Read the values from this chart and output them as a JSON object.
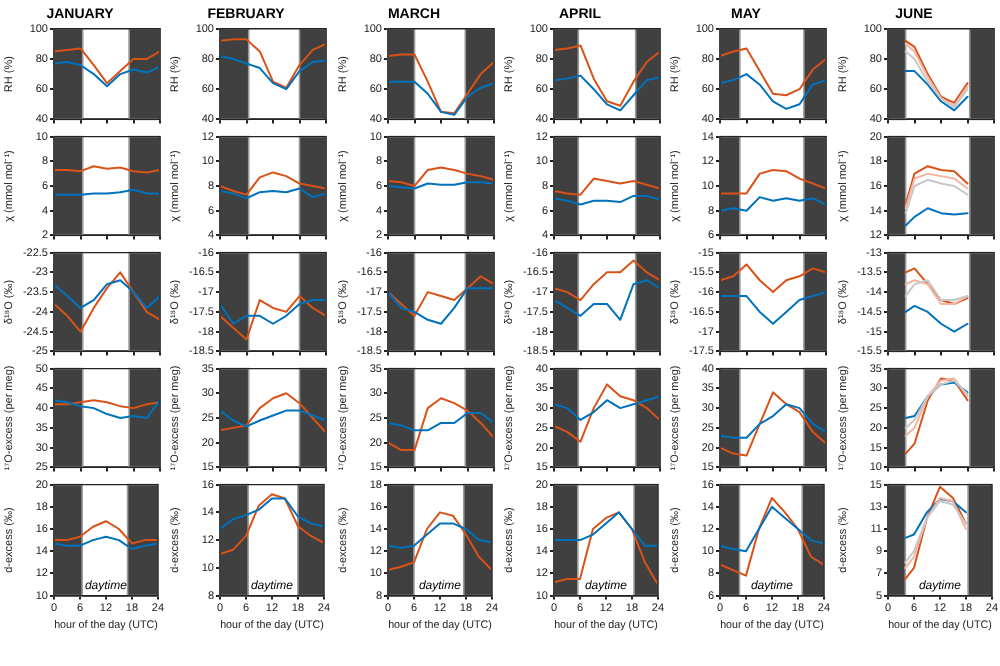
{
  "chart_data": [
    {
      "type": "line",
      "title": "JANUARY",
      "ylabel": "RH (%)",
      "x": [
        0,
        3,
        6,
        9,
        12,
        15,
        18,
        21,
        24
      ],
      "xlim": [
        0,
        24
      ],
      "xticks": [
        0,
        6,
        12,
        18,
        24
      ],
      "ylim": [
        40,
        100
      ],
      "yticks": [
        40,
        60,
        80,
        100
      ],
      "tick_labels": "y",
      "bands": [
        {
          "axis": "x",
          "from": 0,
          "to": 6.5,
          "color": "#404040"
        },
        {
          "axis": "x",
          "from": 17,
          "to": 24,
          "color": "#404040"
        }
      ],
      "series": [
        {
          "color": "#0072bd",
          "values": [
            77,
            78,
            76,
            70,
            62,
            70,
            73,
            71,
            75
          ]
        },
        {
          "color": "#d95319",
          "values": [
            85,
            86,
            87,
            76,
            64,
            72,
            80,
            80,
            85
          ]
        }
      ]
    },
    {
      "type": "line",
      "title": "FEBRUARY",
      "ylabel": "RH (%)",
      "x": [
        0,
        3,
        6,
        9,
        12,
        15,
        18,
        21,
        24
      ],
      "xlim": [
        0,
        24
      ],
      "xticks": [
        0,
        6,
        12,
        18,
        24
      ],
      "ylim": [
        40,
        100
      ],
      "yticks": [
        40,
        60,
        80,
        100
      ],
      "tick_labels": "y",
      "bands": [
        {
          "axis": "x",
          "from": 0,
          "to": 6.5,
          "color": "#404040"
        },
        {
          "axis": "x",
          "from": 18,
          "to": 24,
          "color": "#404040"
        }
      ],
      "series": [
        {
          "color": "#0072bd",
          "values": [
            82,
            80,
            77,
            74,
            64,
            60,
            72,
            78,
            79
          ]
        },
        {
          "color": "#d95319",
          "values": [
            92,
            93,
            93,
            85,
            65,
            61,
            76,
            86,
            90
          ]
        }
      ]
    },
    {
      "type": "line",
      "title": "MARCH",
      "ylabel": "RH (%)",
      "x": [
        0,
        3,
        6,
        9,
        12,
        15,
        18,
        21,
        24
      ],
      "xlim": [
        0,
        24
      ],
      "xticks": [
        0,
        6,
        12,
        18,
        24
      ],
      "ylim": [
        40,
        100
      ],
      "yticks": [
        40,
        60,
        80,
        100
      ],
      "tick_labels": "y",
      "bands": [
        {
          "axis": "x",
          "from": 0,
          "to": 6,
          "color": "#404040"
        },
        {
          "axis": "x",
          "from": 17.5,
          "to": 24,
          "color": "#404040"
        }
      ],
      "series": [
        {
          "color": "#0072bd",
          "values": [
            65,
            65,
            65,
            57,
            45,
            43,
            55,
            61,
            64
          ]
        },
        {
          "color": "#d95319",
          "values": [
            82,
            83,
            83,
            65,
            45,
            44,
            57,
            70,
            78
          ]
        }
      ]
    },
    {
      "type": "line",
      "title": "APRIL",
      "ylabel": "RH (%)",
      "x": [
        0,
        3,
        6,
        9,
        12,
        15,
        18,
        21,
        24
      ],
      "xlim": [
        0,
        24
      ],
      "xticks": [
        0,
        6,
        12,
        18,
        24
      ],
      "ylim": [
        40,
        100
      ],
      "yticks": [
        40,
        60,
        80,
        100
      ],
      "tick_labels": "y",
      "bands": [
        {
          "axis": "x",
          "from": 0,
          "to": 5.5,
          "color": "#404040"
        },
        {
          "axis": "x",
          "from": 18.5,
          "to": 24,
          "color": "#404040"
        }
      ],
      "series": [
        {
          "color": "#0072bd",
          "values": [
            66,
            67,
            69,
            60,
            50,
            46,
            56,
            66,
            68
          ]
        },
        {
          "color": "#d95319",
          "values": [
            86,
            87,
            89,
            67,
            52,
            49,
            65,
            78,
            85
          ]
        }
      ]
    },
    {
      "type": "line",
      "title": "MAY",
      "ylabel": "RH (%)",
      "x": [
        0,
        3,
        6,
        9,
        12,
        15,
        18,
        21,
        24
      ],
      "xlim": [
        0,
        24
      ],
      "xticks": [
        0,
        6,
        12,
        18,
        24
      ],
      "ylim": [
        40,
        100
      ],
      "yticks": [
        40,
        60,
        80,
        100
      ],
      "tick_labels": "y",
      "bands": [
        {
          "axis": "x",
          "from": 0,
          "to": 4.5,
          "color": "#404040"
        },
        {
          "axis": "x",
          "from": 19,
          "to": 24,
          "color": "#404040"
        }
      ],
      "series": [
        {
          "color": "#0072bd",
          "values": [
            64,
            66,
            70,
            63,
            52,
            47,
            50,
            63,
            66
          ]
        },
        {
          "color": "#d95319",
          "values": [
            82,
            85,
            87,
            72,
            57,
            56,
            60,
            73,
            80
          ]
        }
      ]
    },
    {
      "type": "line",
      "title": "JUNE",
      "ylabel": "RH (%)",
      "x": [
        4,
        6,
        9,
        12,
        15,
        18
      ],
      "xlim": [
        0,
        24
      ],
      "xticks": [
        0,
        6,
        12,
        18,
        24
      ],
      "ylim": [
        40,
        100
      ],
      "yticks": [
        40,
        60,
        80,
        100
      ],
      "tick_labels": "y",
      "bands": [
        {
          "axis": "x",
          "from": 0,
          "to": 4,
          "color": "#404040"
        },
        {
          "axis": "x",
          "from": 18.5,
          "to": 24,
          "color": "#404040"
        }
      ],
      "series": [
        {
          "color": "#c8c8c8",
          "values": [
            85,
            80,
            65,
            54,
            48,
            60
          ]
        },
        {
          "color": "#f5b5a3",
          "values": [
            90,
            85,
            68,
            54,
            49,
            62
          ]
        },
        {
          "color": "#0072bd",
          "values": [
            72,
            72,
            63,
            52,
            46,
            55
          ]
        },
        {
          "color": "#d95319",
          "values": [
            92,
            88,
            70,
            55,
            51,
            64
          ]
        }
      ]
    },
    {
      "type": "line",
      "ylabel": "χ (mmol mol⁻¹)",
      "x": [
        0,
        3,
        6,
        9,
        12,
        15,
        18,
        21,
        24
      ],
      "xlim": [
        0,
        24
      ],
      "xticks": [
        0,
        6,
        12,
        18,
        24
      ],
      "ylim": [
        2,
        10
      ],
      "yticks": [
        2,
        4,
        6,
        8,
        10
      ],
      "tick_labels": "y",
      "bands": [
        {
          "axis": "x",
          "from": 0,
          "to": 6.5,
          "color": "#404040"
        },
        {
          "axis": "x",
          "from": 17,
          "to": 24,
          "color": "#404040"
        }
      ],
      "series": [
        {
          "color": "#0072bd",
          "values": [
            5.3,
            5.3,
            5.3,
            5.4,
            5.4,
            5.5,
            5.7,
            5.4,
            5.4
          ]
        },
        {
          "color": "#d95319",
          "values": [
            7.3,
            7.3,
            7.2,
            7.6,
            7.4,
            7.5,
            7.2,
            7.1,
            7.3
          ]
        }
      ]
    },
    {
      "type": "line",
      "ylabel": "χ (mmol mol⁻¹)",
      "x": [
        0,
        3,
        6,
        9,
        12,
        15,
        18,
        21,
        24
      ],
      "xlim": [
        0,
        24
      ],
      "xticks": [
        0,
        6,
        12,
        18,
        24
      ],
      "ylim": [
        4,
        12
      ],
      "yticks": [
        4,
        6,
        8,
        10,
        12
      ],
      "tick_labels": "y",
      "bands": [
        {
          "axis": "x",
          "from": 0,
          "to": 6.5,
          "color": "#404040"
        },
        {
          "axis": "x",
          "from": 18,
          "to": 24,
          "color": "#404040"
        }
      ],
      "series": [
        {
          "color": "#0072bd",
          "values": [
            7.6,
            7.4,
            7.0,
            7.5,
            7.6,
            7.5,
            7.8,
            7.1,
            7.4
          ]
        },
        {
          "color": "#d95319",
          "values": [
            8.0,
            7.6,
            7.3,
            8.7,
            9.1,
            8.8,
            8.2,
            8.0,
            7.8
          ]
        }
      ]
    },
    {
      "type": "line",
      "ylabel": "χ (mmol mol⁻¹)",
      "x": [
        0,
        3,
        6,
        9,
        12,
        15,
        18,
        21,
        24
      ],
      "xlim": [
        0,
        24
      ],
      "xticks": [
        0,
        6,
        12,
        18,
        24
      ],
      "ylim": [
        2,
        10
      ],
      "yticks": [
        2,
        4,
        6,
        8,
        10
      ],
      "tick_labels": "y",
      "bands": [
        {
          "axis": "x",
          "from": 0,
          "to": 6,
          "color": "#404040"
        },
        {
          "axis": "x",
          "from": 17.5,
          "to": 24,
          "color": "#404040"
        }
      ],
      "series": [
        {
          "color": "#0072bd",
          "values": [
            6.0,
            5.9,
            5.8,
            6.2,
            6.1,
            6.1,
            6.3,
            6.3,
            6.2
          ]
        },
        {
          "color": "#d95319",
          "values": [
            6.4,
            6.3,
            6.0,
            7.3,
            7.5,
            7.3,
            7.0,
            6.8,
            6.5
          ]
        }
      ]
    },
    {
      "type": "line",
      "ylabel": "χ (mmol mol⁻¹)",
      "x": [
        0,
        3,
        6,
        9,
        12,
        15,
        18,
        21,
        24
      ],
      "xlim": [
        0,
        24
      ],
      "xticks": [
        0,
        6,
        12,
        18,
        24
      ],
      "ylim": [
        4,
        12
      ],
      "yticks": [
        4,
        6,
        8,
        10,
        12
      ],
      "tick_labels": "y",
      "bands": [
        {
          "axis": "x",
          "from": 0,
          "to": 5.5,
          "color": "#404040"
        },
        {
          "axis": "x",
          "from": 18.5,
          "to": 24,
          "color": "#404040"
        }
      ],
      "series": [
        {
          "color": "#0072bd",
          "values": [
            7.0,
            6.8,
            6.5,
            6.8,
            6.8,
            6.7,
            7.2,
            7.2,
            6.9
          ]
        },
        {
          "color": "#d95319",
          "values": [
            7.6,
            7.4,
            7.3,
            8.6,
            8.4,
            8.2,
            8.4,
            8.1,
            7.8
          ]
        }
      ]
    },
    {
      "type": "line",
      "ylabel": "χ (mmol mol⁻¹)",
      "x": [
        0,
        3,
        6,
        9,
        12,
        15,
        18,
        21,
        24
      ],
      "xlim": [
        0,
        24
      ],
      "xticks": [
        0,
        6,
        12,
        18,
        24
      ],
      "ylim": [
        6,
        14
      ],
      "yticks": [
        6,
        8,
        10,
        12,
        14
      ],
      "tick_labels": "y",
      "bands": [
        {
          "axis": "x",
          "from": 0,
          "to": 4.5,
          "color": "#404040"
        },
        {
          "axis": "x",
          "from": 19,
          "to": 24,
          "color": "#404040"
        }
      ],
      "series": [
        {
          "color": "#0072bd",
          "values": [
            8.0,
            8.2,
            8.0,
            9.1,
            8.8,
            9.0,
            8.8,
            9.0,
            8.5
          ]
        },
        {
          "color": "#d95319",
          "values": [
            9.4,
            9.4,
            9.4,
            11.0,
            11.3,
            11.2,
            10.6,
            10.2,
            9.8
          ]
        }
      ]
    },
    {
      "type": "line",
      "ylabel": "χ (mmol mol⁻¹)",
      "x": [
        4,
        6,
        9,
        12,
        15,
        18
      ],
      "xlim": [
        0,
        24
      ],
      "xticks": [
        0,
        6,
        12,
        18,
        24
      ],
      "ylim": [
        12,
        20
      ],
      "yticks": [
        12,
        14,
        16,
        18,
        20
      ],
      "tick_labels": "y",
      "bands": [
        {
          "axis": "x",
          "from": 0,
          "to": 4,
          "color": "#404040"
        },
        {
          "axis": "x",
          "from": 18.5,
          "to": 24,
          "color": "#404040"
        }
      ],
      "series": [
        {
          "color": "#c8c8c8",
          "values": [
            13.8,
            16.0,
            16.5,
            16.2,
            16.0,
            15.3
          ]
        },
        {
          "color": "#f5b5a3",
          "values": [
            14.2,
            16.6,
            17.0,
            16.8,
            16.6,
            15.8
          ]
        },
        {
          "color": "#0072bd",
          "values": [
            12.8,
            13.5,
            14.2,
            13.8,
            13.7,
            13.8
          ]
        },
        {
          "color": "#d95319",
          "values": [
            14.5,
            17.0,
            17.6,
            17.3,
            17.2,
            16.2
          ]
        }
      ]
    },
    {
      "type": "line",
      "ylabel": "δ¹⁸O (‰)",
      "x": [
        0,
        3,
        6,
        9,
        12,
        15,
        18,
        21,
        24
      ],
      "xlim": [
        0,
        24
      ],
      "xticks": [
        0,
        6,
        12,
        18,
        24
      ],
      "ylim": [
        -25,
        -22.5
      ],
      "yticks": [
        -25,
        -24.5,
        -24,
        -23.5,
        -23,
        -22.5
      ],
      "tick_labels": "y",
      "bands": [
        {
          "axis": "x",
          "from": 0,
          "to": 6.5,
          "color": "#404040"
        },
        {
          "axis": "x",
          "from": 17,
          "to": 24,
          "color": "#404040"
        }
      ],
      "series": [
        {
          "color": "#0072bd",
          "values": [
            -23.3,
            -23.6,
            -23.9,
            -23.7,
            -23.3,
            -23.2,
            -23.5,
            -23.9,
            -23.6
          ]
        },
        {
          "color": "#d95319",
          "values": [
            -23.8,
            -24.1,
            -24.5,
            -23.9,
            -23.4,
            -23.0,
            -23.5,
            -24.0,
            -24.2
          ]
        }
      ]
    },
    {
      "type": "line",
      "ylabel": "δ¹⁸O (‰)",
      "x": [
        0,
        3,
        6,
        9,
        12,
        15,
        18,
        21,
        24
      ],
      "xlim": [
        0,
        24
      ],
      "xticks": [
        0,
        6,
        12,
        18,
        24
      ],
      "ylim": [
        -18.5,
        -16
      ],
      "yticks": [
        -18.5,
        -18,
        -17.5,
        -17,
        -16.5,
        -16
      ],
      "tick_labels": "y",
      "bands": [
        {
          "axis": "x",
          "from": 0,
          "to": 6.5,
          "color": "#404040"
        },
        {
          "axis": "x",
          "from": 18,
          "to": 24,
          "color": "#404040"
        }
      ],
      "series": [
        {
          "color": "#0072bd",
          "values": [
            -17.3,
            -17.8,
            -17.6,
            -17.6,
            -17.8,
            -17.6,
            -17.3,
            -17.2,
            -17.2
          ]
        },
        {
          "color": "#d95319",
          "values": [
            -17.6,
            -17.9,
            -18.2,
            -17.2,
            -17.4,
            -17.5,
            -17.1,
            -17.4,
            -17.6
          ]
        }
      ]
    },
    {
      "type": "line",
      "ylabel": "δ¹⁸O (‰)",
      "x": [
        0,
        3,
        6,
        9,
        12,
        15,
        18,
        21,
        24
      ],
      "xlim": [
        0,
        24
      ],
      "xticks": [
        0,
        6,
        12,
        18,
        24
      ],
      "ylim": [
        -18.5,
        -16
      ],
      "yticks": [
        -18.5,
        -18,
        -17.5,
        -17,
        -16.5,
        -16
      ],
      "tick_labels": "y",
      "bands": [
        {
          "axis": "x",
          "from": 0,
          "to": 6,
          "color": "#404040"
        },
        {
          "axis": "x",
          "from": 17.5,
          "to": 24,
          "color": "#404040"
        }
      ],
      "series": [
        {
          "color": "#0072bd",
          "values": [
            -17.0,
            -17.4,
            -17.5,
            -17.7,
            -17.8,
            -17.4,
            -16.9,
            -16.9,
            -16.9
          ]
        },
        {
          "color": "#d95319",
          "values": [
            -17.0,
            -17.3,
            -17.6,
            -17.0,
            -17.1,
            -17.2,
            -16.9,
            -16.6,
            -16.8
          ]
        }
      ]
    },
    {
      "type": "line",
      "ylabel": "δ¹⁸O (‰)",
      "x": [
        0,
        3,
        6,
        9,
        12,
        15,
        18,
        21,
        24
      ],
      "xlim": [
        0,
        24
      ],
      "xticks": [
        0,
        6,
        12,
        18,
        24
      ],
      "ylim": [
        -18.5,
        -16
      ],
      "yticks": [
        -18.5,
        -18,
        -17.5,
        -17,
        -16.5,
        -16
      ],
      "tick_labels": "y",
      "bands": [
        {
          "axis": "x",
          "from": 0,
          "to": 5.5,
          "color": "#404040"
        },
        {
          "axis": "x",
          "from": 18.5,
          "to": 24,
          "color": "#404040"
        }
      ],
      "series": [
        {
          "color": "#0072bd",
          "values": [
            -17.2,
            -17.4,
            -17.6,
            -17.3,
            -17.3,
            -17.7,
            -16.8,
            -16.7,
            -16.9
          ]
        },
        {
          "color": "#d95319",
          "values": [
            -16.9,
            -17.0,
            -17.2,
            -16.8,
            -16.5,
            -16.5,
            -16.2,
            -16.5,
            -16.7
          ]
        }
      ]
    },
    {
      "type": "line",
      "ylabel": "δ¹⁸O (‰)",
      "x": [
        0,
        3,
        6,
        9,
        12,
        15,
        18,
        21,
        24
      ],
      "xlim": [
        0,
        24
      ],
      "xticks": [
        0,
        6,
        12,
        18,
        24
      ],
      "ylim": [
        -17.5,
        -15
      ],
      "yticks": [
        -17.5,
        -17,
        -16.5,
        -16,
        -15.5,
        -15
      ],
      "tick_labels": "y",
      "bands": [
        {
          "axis": "x",
          "from": 0,
          "to": 4.5,
          "color": "#404040"
        },
        {
          "axis": "x",
          "from": 19,
          "to": 24,
          "color": "#404040"
        }
      ],
      "series": [
        {
          "color": "#0072bd",
          "values": [
            -16.1,
            -16.1,
            -16.1,
            -16.5,
            -16.8,
            -16.5,
            -16.2,
            -16.1,
            -16.0
          ]
        },
        {
          "color": "#d95319",
          "values": [
            -15.7,
            -15.6,
            -15.3,
            -15.7,
            -16.0,
            -15.7,
            -15.6,
            -15.4,
            -15.5
          ]
        }
      ]
    },
    {
      "type": "line",
      "ylabel": "δ¹⁸O (‰)",
      "x": [
        4,
        6,
        9,
        12,
        15,
        18
      ],
      "xlim": [
        0,
        24
      ],
      "xticks": [
        0,
        6,
        12,
        18,
        24
      ],
      "ylim": [
        -15.5,
        -13
      ],
      "yticks": [
        -15.5,
        -15,
        -14.5,
        -14,
        -13.5,
        -13
      ],
      "tick_labels": "y",
      "bands": [
        {
          "axis": "x",
          "from": 0,
          "to": 4,
          "color": "#404040"
        },
        {
          "axis": "x",
          "from": 18.5,
          "to": 24,
          "color": "#404040"
        }
      ],
      "series": [
        {
          "color": "#c8c8c8",
          "values": [
            -14.1,
            -13.8,
            -13.7,
            -14.2,
            -14.2,
            -14.1
          ]
        },
        {
          "color": "#f5b5a3",
          "values": [
            -13.8,
            -13.7,
            -13.8,
            -14.3,
            -14.3,
            -14.1
          ]
        },
        {
          "color": "#0072bd",
          "values": [
            -14.5,
            -14.35,
            -14.5,
            -14.8,
            -15.0,
            -14.8
          ]
        },
        {
          "color": "#d95319",
          "values": [
            -13.5,
            -13.4,
            -13.8,
            -14.2,
            -14.3,
            -14.15
          ]
        }
      ]
    },
    {
      "type": "line",
      "ylabel": "¹⁷O-excess (per meg)",
      "x": [
        0,
        3,
        6,
        9,
        12,
        15,
        18,
        21,
        24
      ],
      "xlim": [
        0,
        24
      ],
      "xticks": [
        0,
        6,
        12,
        18,
        24
      ],
      "ylim": [
        25,
        50
      ],
      "yticks": [
        25,
        30,
        35,
        40,
        45,
        50
      ],
      "tick_labels": "y",
      "bands": [
        {
          "axis": "x",
          "from": 0,
          "to": 6.5,
          "color": "#404040"
        },
        {
          "axis": "x",
          "from": 17,
          "to": 24,
          "color": "#404040"
        }
      ],
      "series": [
        {
          "color": "#0072bd",
          "values": [
            42,
            41.5,
            40.5,
            40,
            38.5,
            37.5,
            38,
            37.5,
            42
          ]
        },
        {
          "color": "#d95319",
          "values": [
            41,
            41,
            41.5,
            42,
            41.5,
            40.5,
            40,
            41,
            41.5
          ]
        }
      ]
    },
    {
      "type": "line",
      "ylabel": "¹⁷O-excess (per meg)",
      "x": [
        0,
        3,
        6,
        9,
        12,
        15,
        18,
        21,
        24
      ],
      "xlim": [
        0,
        24
      ],
      "xticks": [
        0,
        6,
        12,
        18,
        24
      ],
      "ylim": [
        15,
        35
      ],
      "yticks": [
        15,
        20,
        25,
        30,
        35
      ],
      "tick_labels": "y",
      "bands": [
        {
          "axis": "x",
          "from": 0,
          "to": 6.5,
          "color": "#404040"
        },
        {
          "axis": "x",
          "from": 18,
          "to": 24,
          "color": "#404040"
        }
      ],
      "series": [
        {
          "color": "#0072bd",
          "values": [
            26.5,
            24.5,
            23.3,
            24.5,
            25.5,
            26.5,
            26.5,
            25.5,
            24.5
          ]
        },
        {
          "color": "#d95319",
          "values": [
            22.5,
            23,
            23.5,
            27,
            29,
            30,
            28,
            25,
            22
          ]
        }
      ]
    },
    {
      "type": "line",
      "ylabel": "¹⁷O-excess (per meg)",
      "x": [
        0,
        3,
        6,
        9,
        12,
        15,
        18,
        21,
        24
      ],
      "xlim": [
        0,
        24
      ],
      "xticks": [
        0,
        6,
        12,
        18,
        24
      ],
      "ylim": [
        15,
        35
      ],
      "yticks": [
        15,
        20,
        25,
        30,
        35
      ],
      "tick_labels": "y",
      "bands": [
        {
          "axis": "x",
          "from": 0,
          "to": 6,
          "color": "#404040"
        },
        {
          "axis": "x",
          "from": 17.5,
          "to": 24,
          "color": "#404040"
        }
      ],
      "series": [
        {
          "color": "#0072bd",
          "values": [
            24,
            23.5,
            22.5,
            22.5,
            24,
            24,
            26,
            26,
            24
          ]
        },
        {
          "color": "#d95319",
          "values": [
            20,
            18.5,
            18.5,
            27,
            29,
            28,
            26.5,
            24,
            21
          ]
        }
      ]
    },
    {
      "type": "line",
      "ylabel": "¹⁷O-excess (per meg)",
      "x": [
        0,
        3,
        6,
        9,
        12,
        15,
        18,
        21,
        24
      ],
      "xlim": [
        0,
        24
      ],
      "xticks": [
        0,
        6,
        12,
        18,
        24
      ],
      "ylim": [
        15,
        40
      ],
      "yticks": [
        15,
        20,
        25,
        30,
        35,
        40
      ],
      "tick_labels": "y",
      "bands": [
        {
          "axis": "x",
          "from": 0,
          "to": 5.5,
          "color": "#404040"
        },
        {
          "axis": "x",
          "from": 18.5,
          "to": 24,
          "color": "#404040"
        }
      ],
      "series": [
        {
          "color": "#0072bd",
          "values": [
            31,
            30,
            27,
            29,
            32,
            30,
            31,
            32,
            33
          ]
        },
        {
          "color": "#d95319",
          "values": [
            25.5,
            24,
            21.5,
            30,
            36,
            33,
            32,
            30,
            27
          ]
        }
      ]
    },
    {
      "type": "line",
      "ylabel": "¹⁷O-excess (per meg)",
      "x": [
        0,
        3,
        6,
        9,
        12,
        15,
        18,
        21,
        24
      ],
      "xlim": [
        0,
        24
      ],
      "xticks": [
        0,
        6,
        12,
        18,
        24
      ],
      "ylim": [
        15,
        40
      ],
      "yticks": [
        15,
        20,
        25,
        30,
        35,
        40
      ],
      "tick_labels": "y",
      "bands": [
        {
          "axis": "x",
          "from": 0,
          "to": 4.5,
          "color": "#404040"
        },
        {
          "axis": "x",
          "from": 19,
          "to": 24,
          "color": "#404040"
        }
      ],
      "series": [
        {
          "color": "#0072bd",
          "values": [
            23,
            22.5,
            22.5,
            26,
            28,
            31,
            30,
            26,
            24
          ]
        },
        {
          "color": "#d95319",
          "values": [
            20,
            18.5,
            18,
            26,
            34,
            31,
            29,
            24,
            21
          ]
        }
      ]
    },
    {
      "type": "line",
      "ylabel": "¹⁷O-excess (per meg)",
      "x": [
        4,
        6,
        9,
        12,
        15,
        18
      ],
      "xlim": [
        0,
        24
      ],
      "xticks": [
        0,
        6,
        12,
        18,
        24
      ],
      "ylim": [
        10,
        35
      ],
      "yticks": [
        10,
        15,
        20,
        25,
        30,
        35
      ],
      "tick_labels": "y",
      "bands": [
        {
          "axis": "x",
          "from": 0,
          "to": 4,
          "color": "#404040"
        },
        {
          "axis": "x",
          "from": 18.5,
          "to": 24,
          "color": "#404040"
        }
      ],
      "series": [
        {
          "color": "#c8c8c8",
          "values": [
            20,
            22,
            28,
            31,
            32,
            28.5
          ]
        },
        {
          "color": "#f5b5a3",
          "values": [
            18,
            20,
            28,
            32,
            32.5,
            28
          ]
        },
        {
          "color": "#0072bd",
          "values": [
            22.5,
            23,
            28,
            31,
            31.5,
            29
          ]
        },
        {
          "color": "#d95319",
          "values": [
            13.5,
            16,
            27,
            32.5,
            32,
            27
          ]
        }
      ]
    },
    {
      "type": "line",
      "ylabel": "d-excess (‰)",
      "xlabel": "hour of the day (UTC)",
      "annotations": [
        "daytime"
      ],
      "x": [
        0,
        3,
        6,
        9,
        12,
        15,
        18,
        21,
        24
      ],
      "xlim": [
        0,
        24
      ],
      "xticks": [
        0,
        6,
        12,
        18,
        24
      ],
      "ylim": [
        10,
        20
      ],
      "yticks": [
        10,
        12,
        14,
        16,
        18,
        20
      ],
      "bands": [
        {
          "axis": "x",
          "from": 0,
          "to": 6.5,
          "color": "#404040"
        },
        {
          "axis": "x",
          "from": 17,
          "to": 24,
          "color": "#404040"
        }
      ],
      "series": [
        {
          "color": "#0072bd",
          "values": [
            14.7,
            14.5,
            14.5,
            15,
            15.3,
            15,
            14.2,
            14.5,
            14.7
          ]
        },
        {
          "color": "#d95319",
          "values": [
            15,
            15,
            15.3,
            16.2,
            16.7,
            16,
            14.7,
            15,
            15
          ]
        }
      ]
    },
    {
      "type": "line",
      "ylabel": "d-excess (‰)",
      "xlabel": "hour of the day (UTC)",
      "annotations": [
        "daytime"
      ],
      "x": [
        0,
        3,
        6,
        9,
        12,
        15,
        18,
        21,
        24
      ],
      "xlim": [
        0,
        24
      ],
      "xticks": [
        0,
        6,
        12,
        18,
        24
      ],
      "ylim": [
        8,
        16
      ],
      "yticks": [
        8,
        10,
        12,
        14,
        16
      ],
      "bands": [
        {
          "axis": "x",
          "from": 0,
          "to": 6.5,
          "color": "#404040"
        },
        {
          "axis": "x",
          "from": 18,
          "to": 24,
          "color": "#404040"
        }
      ],
      "series": [
        {
          "color": "#0072bd",
          "values": [
            12.8,
            13.5,
            13.8,
            14.2,
            15,
            15,
            13.7,
            13.2,
            13
          ]
        },
        {
          "color": "#d95319",
          "values": [
            11,
            11.3,
            12.3,
            14.5,
            15.3,
            15,
            13,
            12.3,
            11.8
          ]
        }
      ]
    },
    {
      "type": "line",
      "ylabel": "d-excess (‰)",
      "xlabel": "hour of the day (UTC)",
      "annotations": [
        "daytime"
      ],
      "x": [
        0,
        3,
        6,
        9,
        12,
        15,
        18,
        21,
        24
      ],
      "xlim": [
        0,
        24
      ],
      "xticks": [
        0,
        6,
        12,
        18,
        24
      ],
      "ylim": [
        8,
        18
      ],
      "yticks": [
        8,
        10,
        12,
        14,
        16,
        18
      ],
      "bands": [
        {
          "axis": "x",
          "from": 0,
          "to": 6,
          "color": "#404040"
        },
        {
          "axis": "x",
          "from": 17.5,
          "to": 24,
          "color": "#404040"
        }
      ],
      "series": [
        {
          "color": "#0072bd",
          "values": [
            12.5,
            12.3,
            12.5,
            13.5,
            14.5,
            14.5,
            14,
            13,
            12.8
          ]
        },
        {
          "color": "#d95319",
          "values": [
            10.3,
            10.6,
            11,
            14,
            15.5,
            15.2,
            13.5,
            11.5,
            10.3
          ]
        }
      ]
    },
    {
      "type": "line",
      "ylabel": "d-excess (‰)",
      "xlabel": "hour of the day (UTC)",
      "annotations": [
        "daytime"
      ],
      "x": [
        0,
        3,
        6,
        9,
        12,
        15,
        18,
        21,
        24
      ],
      "xlim": [
        0,
        24
      ],
      "xticks": [
        0,
        6,
        12,
        18,
        24
      ],
      "ylim": [
        10,
        20
      ],
      "yticks": [
        10,
        12,
        14,
        16,
        18,
        20
      ],
      "bands": [
        {
          "axis": "x",
          "from": 0,
          "to": 5.5,
          "color": "#404040"
        },
        {
          "axis": "x",
          "from": 18.5,
          "to": 24,
          "color": "#404040"
        }
      ],
      "series": [
        {
          "color": "#0072bd",
          "values": [
            15,
            15,
            15,
            15.5,
            16.5,
            17.5,
            16,
            14.5,
            14.5
          ]
        },
        {
          "color": "#d95319",
          "values": [
            11.2,
            11.5,
            11.5,
            16,
            17,
            17.5,
            16,
            13,
            11
          ]
        }
      ]
    },
    {
      "type": "line",
      "ylabel": "d-excess (‰)",
      "xlabel": "hour of the day (UTC)",
      "annotations": [
        "daytime"
      ],
      "x": [
        0,
        3,
        6,
        9,
        12,
        15,
        18,
        21,
        24
      ],
      "xlim": [
        0,
        24
      ],
      "xticks": [
        0,
        6,
        12,
        18,
        24
      ],
      "ylim": [
        6,
        16
      ],
      "yticks": [
        6,
        8,
        10,
        12,
        14,
        16
      ],
      "bands": [
        {
          "axis": "x",
          "from": 0,
          "to": 4.5,
          "color": "#404040"
        },
        {
          "axis": "x",
          "from": 19,
          "to": 24,
          "color": "#404040"
        }
      ],
      "series": [
        {
          "color": "#0072bd",
          "values": [
            10.5,
            10.2,
            10,
            12,
            14,
            13,
            12,
            11,
            10.7
          ]
        },
        {
          "color": "#d95319",
          "values": [
            8.8,
            8.3,
            7.8,
            12,
            14.8,
            13.5,
            12,
            9.5,
            8.8
          ]
        }
      ]
    },
    {
      "type": "line",
      "ylabel": "d-excess (‰)",
      "xlabel": "hour of the day (UTC)",
      "annotations": [
        "daytime"
      ],
      "x": [
        4,
        6,
        9,
        12,
        15,
        18
      ],
      "xlim": [
        0,
        24
      ],
      "xticks": [
        0,
        6,
        12,
        18,
        24
      ],
      "ylim": [
        5,
        15
      ],
      "yticks": [
        5,
        7,
        9,
        11,
        13,
        15
      ],
      "bands": [
        {
          "axis": "x",
          "from": 0,
          "to": 4,
          "color": "#404040"
        },
        {
          "axis": "x",
          "from": 18.5,
          "to": 24,
          "color": "#404040"
        }
      ],
      "series": [
        {
          "color": "#c8c8c8",
          "values": [
            8,
            9,
            12,
            13.5,
            13.2,
            11.5
          ]
        },
        {
          "color": "#f5b5a3",
          "values": [
            7.5,
            8.5,
            12,
            13.8,
            13.5,
            11
          ]
        },
        {
          "color": "#0072bd",
          "values": [
            10.2,
            10.5,
            12.5,
            13.7,
            13.5,
            12.5
          ]
        },
        {
          "color": "#d95319",
          "values": [
            6.5,
            7.5,
            12,
            14.8,
            13.8,
            11.5
          ]
        }
      ]
    }
  ]
}
